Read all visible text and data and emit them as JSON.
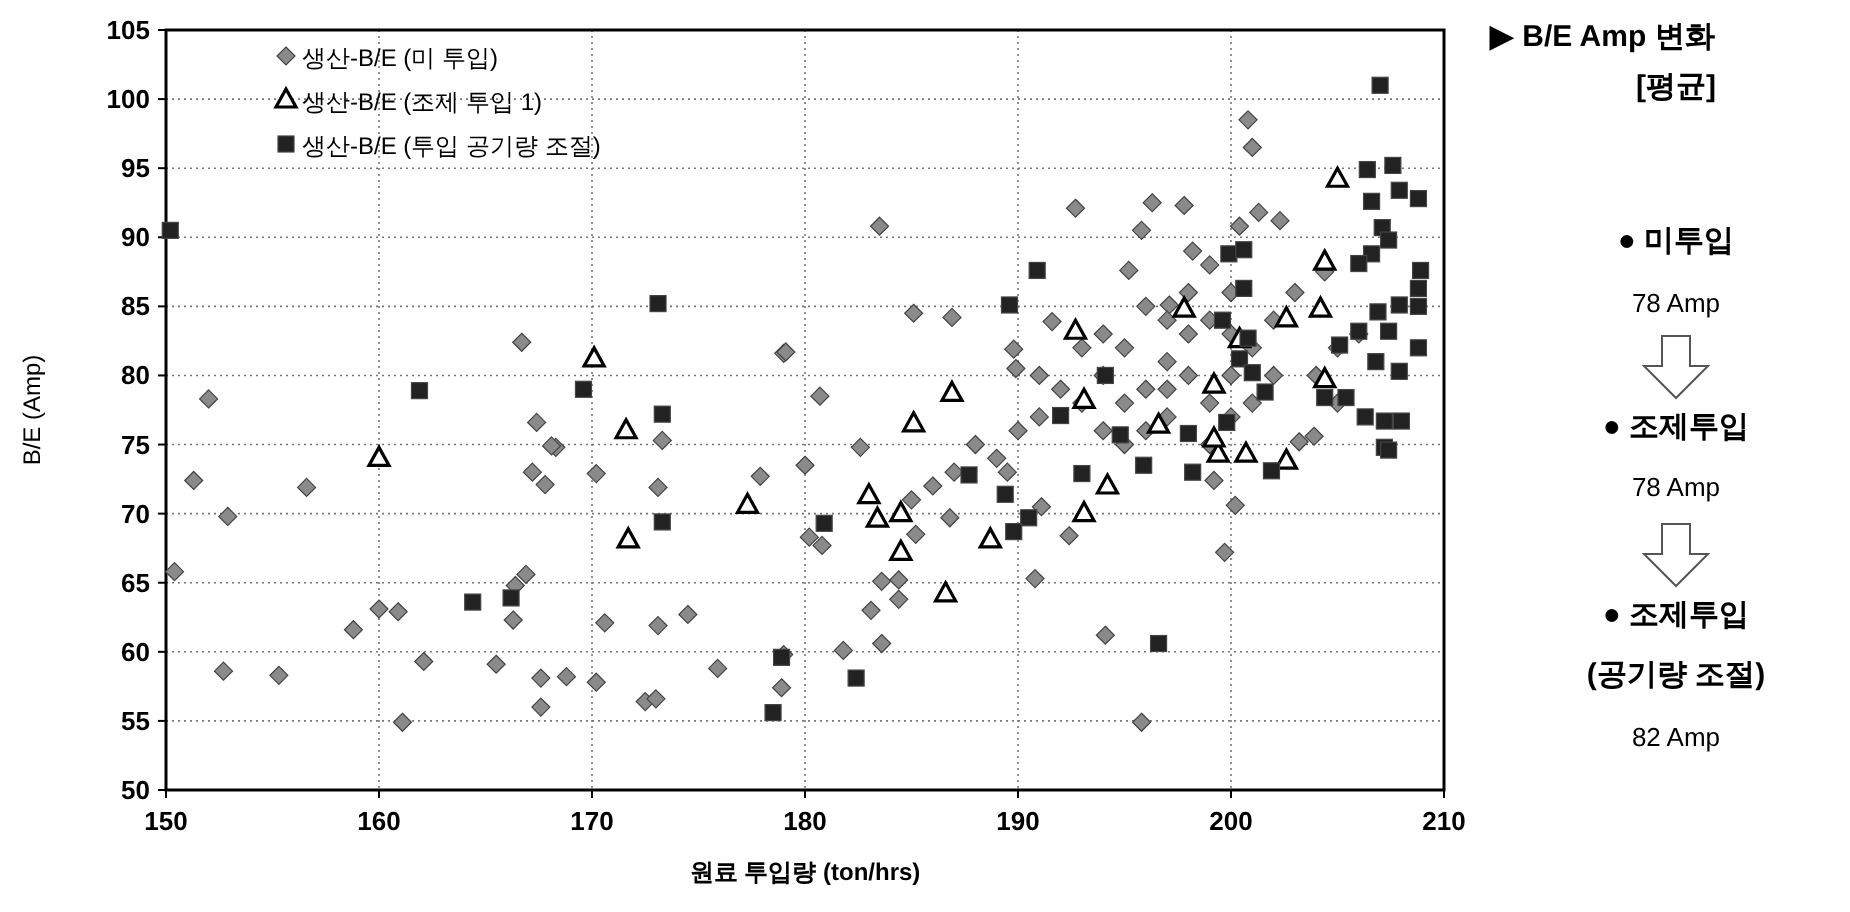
{
  "chart_data": {
    "type": "scatter",
    "xlabel": "원료 투입량 (ton/hrs)",
    "ylabel": "B/E (Amp)",
    "xlim": [
      150,
      210
    ],
    "ylim": [
      50,
      105
    ],
    "xticks": [
      150,
      160,
      170,
      180,
      190,
      200,
      210
    ],
    "yticks": [
      50,
      55,
      60,
      65,
      70,
      75,
      80,
      85,
      90,
      95,
      100,
      105
    ],
    "grid": true,
    "legend": "top left",
    "line_style": "dotted",
    "annotations": [
      "▶ B/E Amp 변화",
      "[평균]",
      "● 미투입",
      "78 Amp",
      "● 조제투입",
      "78 Amp",
      "● 조제투입",
      "(공기량 조절)",
      "82 Amp"
    ],
    "series": [
      {
        "name": "생산-B/E (미 투입)",
        "color": "#8a8a8a",
        "marker": "diamond",
        "x": [
          150.4,
          151.3,
          152.7,
          152.9,
          155.3,
          156.6,
          158.8,
          160,
          160.9,
          161.1,
          162.1,
          165.5,
          166.3,
          166.9,
          166.4,
          167.6,
          167.6,
          168.8,
          168.3,
          167.2,
          167.8,
          170.2,
          170.2,
          170.6,
          172.5,
          173,
          173.1,
          173.1,
          174.5,
          175.9,
          177.9,
          178.9,
          152,
          166.7,
          167.4,
          168.1,
          173.3,
          179,
          180,
          180.2,
          180.8,
          182.6,
          183.1,
          183.6,
          184.4,
          184.4,
          183.6,
          181.8,
          179,
          185.2,
          186.8,
          189.5,
          190.8,
          191.1,
          192.4,
          194.1,
          195.8,
          199.7,
          199.2,
          200.2,
          203.2,
          179.1,
          180.7,
          183.5,
          185.1,
          186.9,
          189.8,
          189.9,
          191.6,
          192.7,
          195.2,
          195.8,
          196.3,
          197.8,
          198.2,
          200.8,
          201,
          201.3,
          202.3,
          200.4,
          203.9,
          204.4,
          197.1,
          193,
          194,
          195,
          196,
          197,
          198,
          199,
          200,
          201,
          198,
          197,
          196,
          195,
          199,
          200,
          194,
          192,
          198,
          199,
          201,
          197,
          196,
          200,
          202,
          193,
          191,
          190,
          191,
          189,
          188,
          187,
          186,
          185,
          199,
          200,
          197,
          195,
          194,
          202,
          203,
          204,
          205,
          206,
          205
        ],
        "values": [
          65.8,
          72.4,
          58.6,
          69.8,
          58.3,
          71.9,
          61.6,
          63.1,
          62.9,
          54.9,
          59.3,
          59.1,
          62.3,
          65.6,
          64.8,
          58.1,
          56,
          58.2,
          74.8,
          73,
          72.1,
          72.9,
          57.8,
          62.1,
          56.4,
          56.6,
          61.9,
          71.9,
          62.7,
          58.8,
          72.7,
          57.4,
          78.3,
          82.4,
          76.6,
          74.9,
          75.3,
          81.6,
          73.5,
          68.3,
          67.7,
          74.8,
          63,
          65.1,
          63.8,
          65.2,
          60.6,
          60.1,
          59.8,
          68.5,
          69.7,
          73,
          65.3,
          70.5,
          68.4,
          61.2,
          54.9,
          67.2,
          72.4,
          70.6,
          75.2,
          81.7,
          78.5,
          90.8,
          84.5,
          84.2,
          81.9,
          80.5,
          83.9,
          92.1,
          87.6,
          90.5,
          92.5,
          92.3,
          89,
          98.5,
          96.5,
          91.8,
          91.2,
          90.8,
          75.6,
          87.5,
          85.1,
          78,
          80,
          82,
          79,
          81,
          80,
          78,
          80,
          82,
          83,
          77,
          76,
          75,
          84,
          77,
          76,
          79,
          86,
          75,
          78,
          84,
          85,
          86,
          80,
          82,
          77,
          76,
          80,
          74,
          75,
          73,
          72,
          71,
          88,
          83,
          79,
          78,
          83,
          84,
          86,
          80,
          82,
          83,
          78
        ]
      },
      {
        "name": "생산-B/E (조제 투입 1)",
        "color": "#ffffff",
        "marker": "triangle",
        "x": [
          170.1,
          171.6,
          160,
          171.7,
          177.3,
          183,
          183.4,
          184.5,
          184.5,
          186.6,
          188.7,
          193.1,
          194.2,
          199.4,
          200.7,
          202.6,
          205,
          185.1,
          186.9,
          192.7,
          193.1,
          197.8,
          202.6,
          204.2,
          204.4,
          204.4,
          199.2,
          196.6,
          199.2,
          200.4
        ],
        "values": [
          81.2,
          76,
          74,
          68.1,
          70.6,
          71.3,
          69.6,
          70,
          67.2,
          64.2,
          68.1,
          70,
          72,
          74.3,
          74.3,
          73.8,
          94.2,
          76.5,
          78.7,
          83.2,
          78.2,
          84.8,
          84.1,
          84.8,
          88.2,
          79.7,
          79.3,
          76.4,
          75.4,
          82.6
        ]
      },
      {
        "name": "생산-B/E (투입 공기량 조절)",
        "color": "#222222",
        "marker": "square",
        "x": [
          150.2,
          161.9,
          169.6,
          173.1,
          173.3,
          164.4,
          166.2,
          173.3,
          178.9,
          178.5,
          180.9,
          182.4,
          187.7,
          189.4,
          190.5,
          189.8,
          196.6,
          193,
          195.9,
          198.2,
          201.9,
          207.2,
          207,
          206.4,
          207.6,
          207.9,
          208.8,
          206.6,
          207.1,
          207.4,
          206.6,
          206,
          208.9,
          208.8,
          207.9,
          206.9,
          208.8,
          206,
          207.4,
          208.8,
          205.1,
          206.8,
          207.9,
          204.4,
          205.4,
          206.3,
          207.2,
          208,
          207.4,
          199.9,
          200.6,
          200.6,
          200.8,
          199.6,
          189.6,
          190.9,
          194.1,
          192,
          194.8,
          200.4,
          201,
          198,
          199.8,
          201.6
        ],
        "values": [
          90.5,
          78.9,
          79,
          85.2,
          77.2,
          63.6,
          63.9,
          69.4,
          59.6,
          55.6,
          69.3,
          58.1,
          72.8,
          71.4,
          69.7,
          68.7,
          60.6,
          72.9,
          73.5,
          73,
          73.1,
          74.8,
          101,
          94.9,
          95.2,
          93.4,
          92.8,
          92.6,
          90.7,
          89.8,
          88.8,
          88.1,
          87.6,
          86.3,
          85.1,
          84.6,
          85,
          83.2,
          83.2,
          82,
          82.2,
          81,
          80.3,
          78.4,
          78.4,
          77,
          76.7,
          76.7,
          74.6,
          88.8,
          89.1,
          86.3,
          82.7,
          84,
          85.1,
          87.6,
          80,
          77.1,
          75.7,
          81.2,
          80.2,
          75.8,
          76.6,
          78.8
        ]
      }
    ]
  }
}
